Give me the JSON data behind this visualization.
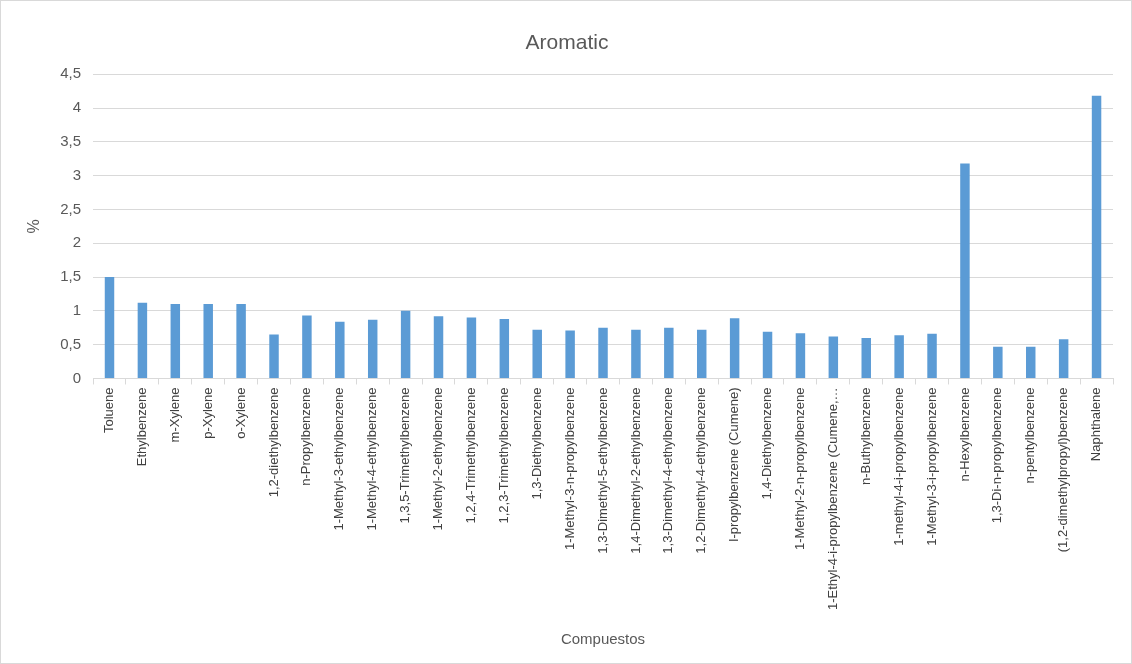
{
  "chart_data": {
    "type": "bar",
    "title": "Aromatic",
    "xlabel": "Compuestos",
    "ylabel": "%",
    "categories": [
      "Toluene",
      "Ethylbenzene",
      "m-Xylene",
      "p-Xylene",
      "o-Xylene",
      "1,2-diethylbenzene",
      "n-Propylbenzene",
      "1-Methyl-3-ethylbenzene",
      "1-Methyl-4-ethylbenzene",
      "1,3,5-Trimethylbenzene",
      "1-Methyl-2-ethylbenzene",
      "1,2,4-Trimethylbenzene",
      "1,2,3-Trimethylbenzene",
      "1,3-Diethylbenzene",
      "1-Methyl-3-n-propylbenzene",
      "1,3-Dimethyl-5-ethylbenzene",
      "1,4-Dimethyl-2-ethylbenzene",
      "1,3-Dimethyl-4-ethylbenzene",
      "1,2-Dimethyl-4-ethylbenzene",
      "I-propylbenzene (Cumene)",
      "1,4-Diethylbenzene",
      "1-Methyl-2-n-propylbenzene",
      "1-Ethyl-4-i-propylbenzene (Cumene,…",
      "n-Buthylbenzene",
      "1-methyl-4-i-propylbenzene",
      "1-Methyl-3-i-propylbenzene",
      "n-Hexylbenzene",
      "1,3-Di-n-propylbenzene",
      "n-pentylbenzene",
      "(1,2-dimethylpropyl)benzene",
      "Naphthalene"
    ],
    "values": [
      1.5,
      1.12,
      1.1,
      1.1,
      1.1,
      0.65,
      0.93,
      0.84,
      0.87,
      1.0,
      0.92,
      0.9,
      0.88,
      0.72,
      0.71,
      0.75,
      0.72,
      0.75,
      0.72,
      0.89,
      0.69,
      0.67,
      0.62,
      0.6,
      0.64,
      0.66,
      3.18,
      0.47,
      0.47,
      0.58,
      4.18
    ],
    "color": "#5b9bd5",
    "ylim": [
      0,
      4.5
    ],
    "yticks": [
      0,
      {
        "value": 0.5,
        "label": "0,5"
      },
      1,
      {
        "value": 1.5,
        "label": "1,5"
      },
      2,
      {
        "value": 2.5,
        "label": "2,5"
      },
      3,
      {
        "value": 3.5,
        "label": "3,5"
      },
      4,
      {
        "value": 4.5,
        "label": "4,5"
      }
    ],
    "grid": "y",
    "legend": false
  }
}
